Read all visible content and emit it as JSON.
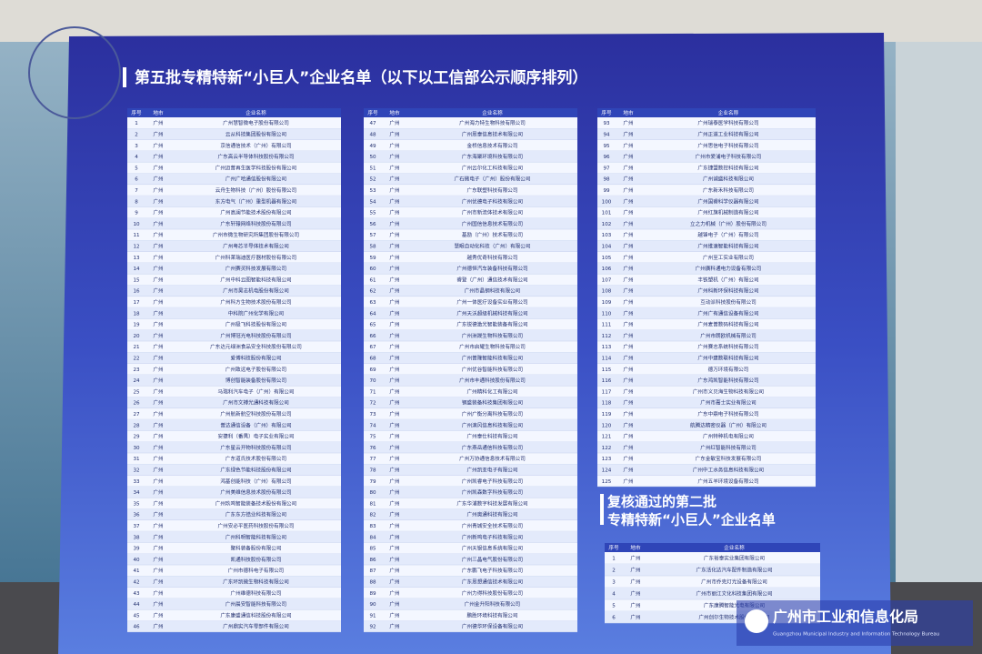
{
  "title": "第五批专精特新“小巨人”企业名单（以下以工信部公示顺序排列）",
  "subtitle": [
    "复核通过的第二批",
    "专精特新“小巨人”企业名单"
  ],
  "logo": {
    "name": "广州市工业和信息化局",
    "english": "Guangzhou Municipal Industry and Information Technology Bureau"
  },
  "tables": [
    {
      "header": [
        "序号",
        "地市",
        "企业名称"
      ],
      "rows": [
        [
          1,
          "广州",
          "广州慧智微电子股份有限公司"
        ],
        [
          2,
          "广州",
          "云从科技集团股份有限公司"
        ],
        [
          3,
          "广州",
          "京信通信技术（广州）有限公司"
        ],
        [
          4,
          "广州",
          "广东高云半导体科技股份有限公司"
        ],
        [
          5,
          "广州",
          "广州迈普再生医学科技股份有限公司"
        ],
        [
          6,
          "广州",
          "广州广哈通信股份有限公司"
        ],
        [
          7,
          "广州",
          "云舟生物科技（广州）股份有限公司"
        ],
        [
          8,
          "广州",
          "东方电气（广州）重型机器有限公司"
        ],
        [
          9,
          "广州",
          "广州高澜节能技术股份有限公司"
        ],
        [
          10,
          "广州",
          "广东轩辕网络科技股份有限公司"
        ],
        [
          11,
          "广州",
          "广州市微生物研究所集团股份有限公司"
        ],
        [
          12,
          "广州",
          "广州粤芯半导体技术有限公司"
        ],
        [
          13,
          "广州",
          "广州科莱瑞迪医疗器材股份有限公司"
        ],
        [
          14,
          "广州",
          "广州赛灵科技发展有限公司"
        ],
        [
          15,
          "广州",
          "广州中科云图智能科技有限公司"
        ],
        [
          16,
          "广州",
          "广州市昊志机电股份有限公司"
        ],
        [
          17,
          "广州",
          "广州科方生物技术股份有限公司"
        ],
        [
          18,
          "广州",
          "中科院广州化学有限公司"
        ],
        [
          19,
          "广州",
          "广州极飞科技股份有限公司"
        ],
        [
          20,
          "广州",
          "广州博冠光电科技股份有限公司"
        ],
        [
          21,
          "广州",
          "广东达元绿洲食品安全科技股份有限公司"
        ],
        [
          22,
          "广州",
          "爱博科技股份有限公司"
        ],
        [
          23,
          "广州",
          "广州致远电子股份有限公司"
        ],
        [
          24,
          "广州",
          "博创智能装备股份有限公司"
        ],
        [
          25,
          "广州",
          "马瑞利汽车电子（广州）有限公司"
        ],
        [
          26,
          "广州",
          "广州市文搏光通科技有限公司"
        ],
        [
          27,
          "广州",
          "广州航新航空科技股份有限公司"
        ],
        [
          28,
          "广州",
          "普达通信设备（广州）有限公司"
        ],
        [
          29,
          "广州",
          "安捷利（番禺）电子实业有限公司"
        ],
        [
          30,
          "广州",
          "广东星云开物科技股份有限公司"
        ],
        [
          31,
          "广州",
          "广东道氏技术股份有限公司"
        ],
        [
          32,
          "广州",
          "广东绿色节能科技股份有限公司"
        ],
        [
          33,
          "广州",
          "鸿基创能科技（广州）有限公司"
        ],
        [
          34,
          "广州",
          "广州美维信息技术股份有限公司"
        ],
        [
          35,
          "广州",
          "广州玖鸣智能装备技术股份有限公司"
        ],
        [
          36,
          "广州",
          "广东东方锆业科技有限公司"
        ],
        [
          37,
          "广州",
          "广州安必平医药科技股份有限公司"
        ],
        [
          38,
          "广州",
          "广州科明智能科技有限公司"
        ],
        [
          39,
          "广州",
          "聚科装备股份有限公司"
        ],
        [
          40,
          "广州",
          "凯通科技股份有限公司"
        ],
        [
          41,
          "广州",
          "广州市德科电子有限公司"
        ],
        [
          42,
          "广州",
          "广东环凯微生物科技有限公司"
        ],
        [
          43,
          "广州",
          "广州维德科技有限公司"
        ],
        [
          44,
          "广州",
          "广州晨安智能科技有限公司"
        ],
        [
          45,
          "广州",
          "广东康盛通信科技股份有限公司"
        ],
        [
          46,
          "广州",
          "广州鼎实汽车零部件有限公司"
        ]
      ]
    },
    {
      "header": [
        "序号",
        "地市",
        "企业名称"
      ],
      "rows": [
        [
          47,
          "广州",
          "广州海力特生物科技有限公司"
        ],
        [
          48,
          "广州",
          "广州思泰信息技术有限公司"
        ],
        [
          49,
          "广州",
          "金桥信息技术有限公司"
        ],
        [
          50,
          "广州",
          "广东海聚环境科技有限公司"
        ],
        [
          51,
          "广州",
          "广州云尔化工科技有限公司"
        ],
        [
          52,
          "广州",
          "广石微电子（广州）股份有限公司"
        ],
        [
          53,
          "广州",
          "广东联塑科技有限公司"
        ],
        [
          54,
          "广州",
          "广州优德电子科技有限公司"
        ],
        [
          55,
          "广州",
          "广州市新流体技术有限公司"
        ],
        [
          56,
          "广州",
          "广州国信信息技术有限公司"
        ],
        [
          57,
          "广州",
          "基励（广州）技术有限公司"
        ],
        [
          58,
          "广州",
          "慧眼自动化科技（广州）有限公司"
        ],
        [
          59,
          "广州",
          "越秀优奇科技有限公司"
        ],
        [
          60,
          "广州",
          "广州德恒汽车装备科技有限公司"
        ],
        [
          61,
          "广州",
          "睿登（广州）通信技术有限公司"
        ],
        [
          62,
          "广州",
          "广州市晶钢科技有限公司"
        ],
        [
          63,
          "广州",
          "广州一体医疗设备实业有限公司"
        ],
        [
          64,
          "广州",
          "广州天沃超级机械科技有限公司"
        ],
        [
          65,
          "广州",
          "广东锐德激光智能装备有限公司"
        ],
        [
          66,
          "广州",
          "广州洲晟生物科技有限公司"
        ],
        [
          67,
          "广州",
          "广州市启耀生物科技有限公司"
        ],
        [
          68,
          "广州",
          "广州普隆智能科技有限公司"
        ],
        [
          69,
          "广州",
          "广州优谷智能科技有限公司"
        ],
        [
          70,
          "广州",
          "广州市丰通科技股份有限公司"
        ],
        [
          71,
          "广州",
          "广州精科化工有限公司"
        ],
        [
          72,
          "广州",
          "钢盛装备科技集团有限公司"
        ],
        [
          73,
          "广州",
          "广州广衡分离科技有限公司"
        ],
        [
          74,
          "广州",
          "广州滴风信息科技有限公司"
        ],
        [
          75,
          "广州",
          "广州泰仕科技有限公司"
        ],
        [
          76,
          "广州",
          "广东燕岳通信科技有限公司"
        ],
        [
          77,
          "广州",
          "广州万协通信息技术有限公司"
        ],
        [
          78,
          "广州",
          "广州凯亚电子有限公司"
        ],
        [
          79,
          "广州",
          "广州凯睿电子科技有限公司"
        ],
        [
          80,
          "广州",
          "广州凯森数字科技有限公司"
        ],
        [
          81,
          "广州",
          "广东华浦数字科技发展有限公司"
        ],
        [
          82,
          "广州",
          "广州奥通科技有限公司"
        ],
        [
          83,
          "广州",
          "广州青城安全技术有限公司"
        ],
        [
          84,
          "广州",
          "广州新鸣电子科技有限公司"
        ],
        [
          85,
          "广州",
          "广州天银信息系统有限公司"
        ],
        [
          86,
          "广州",
          "广州三晶电气股份有限公司"
        ],
        [
          87,
          "广州",
          "广东鹏飞电子科技有限公司"
        ],
        [
          88,
          "广州",
          "广东思想通信技术有限公司"
        ],
        [
          89,
          "广州",
          "广州力得科技股份有限公司"
        ],
        [
          90,
          "广州",
          "广州金升阳科技有限公司"
        ],
        [
          91,
          "广州",
          "鹏胜环境科技有限公司"
        ],
        [
          92,
          "广州",
          "广州德华环保设备有限公司"
        ]
      ]
    },
    {
      "header": [
        "序号",
        "地市",
        "企业名称"
      ],
      "rows": [
        [
          93,
          "广州",
          "广州瑞泰医学科技有限公司"
        ],
        [
          94,
          "广州",
          "广州正道工业科技有限公司"
        ],
        [
          95,
          "广州",
          "广州思信电子科技有限公司"
        ],
        [
          96,
          "广州",
          "广州市爱浦电子科技有限公司"
        ],
        [
          97,
          "广州",
          "广东捷盟数控科技有限公司"
        ],
        [
          98,
          "广州",
          "广州诚盛科技有限公司"
        ],
        [
          99,
          "广州",
          "广东新禾科技有限公司"
        ],
        [
          100,
          "广州",
          "广州国睿科学仪器有限公司"
        ],
        [
          101,
          "广州",
          "广州红旗机械制造有限公司"
        ],
        [
          102,
          "广州",
          "立之力机械（广州）股份有限公司"
        ],
        [
          103,
          "广州",
          "越锋电子（广州）有限公司"
        ],
        [
          104,
          "广州",
          "广州维速智能科技有限公司"
        ],
        [
          105,
          "广州",
          "广州至工实业有限公司"
        ],
        [
          106,
          "广州",
          "广州廣科通电力设备有限公司"
        ],
        [
          107,
          "广州",
          "丰铁塑机（广州）有限公司"
        ],
        [
          108,
          "广州",
          "广州科新环保科技有限公司"
        ],
        [
          109,
          "广州",
          "互动派科技股份有限公司"
        ],
        [
          110,
          "广州",
          "广州广有通信设备有限公司"
        ],
        [
          111,
          "广州",
          "广州麦普数码科技有限公司"
        ],
        [
          112,
          "广州",
          "广州市朗欧机械有限公司"
        ],
        [
          113,
          "广州",
          "广州赛志系统科技有限公司"
        ],
        [
          114,
          "广州",
          "广州中建数联科技有限公司"
        ],
        [
          115,
          "广州",
          "德万环境有限公司"
        ],
        [
          116,
          "广州",
          "广东鸿凯智能科技有限公司"
        ],
        [
          117,
          "广州",
          "广州市义贝海生物科技有限公司"
        ],
        [
          118,
          "广州",
          "广州市嘉士实业有限公司"
        ],
        [
          119,
          "广州",
          "广东中鼎电子科技有限公司"
        ],
        [
          120,
          "广州",
          "航腾达精密仪器（广州）有限公司"
        ],
        [
          121,
          "广州",
          "广州特种机电有限公司"
        ],
        [
          122,
          "广州",
          "广州红智能科技有限公司"
        ],
        [
          123,
          "广州",
          "广东金敏宝科技发展有限公司"
        ],
        [
          124,
          "广州",
          "广州中工水务信息科技有限公司"
        ],
        [
          125,
          "广州",
          "广州五羊环境设备有限公司"
        ]
      ]
    },
    {
      "header": [
        "序号",
        "地市",
        "企业名称"
      ],
      "rows": [
        [
          1,
          "广州",
          "广东裕泰实业集团有限公司"
        ],
        [
          2,
          "广州",
          "广东活化达汽车配件制造有限公司"
        ],
        [
          3,
          "广州",
          "广州市乔克灯光设备有限公司"
        ],
        [
          4,
          "广州",
          "广州市丽江文化科技集团有限公司"
        ],
        [
          5,
          "广州",
          "广东康腾智能光电有限公司"
        ],
        [
          6,
          "广州",
          "广州创尔生物技术股份有限公司"
        ]
      ]
    }
  ]
}
